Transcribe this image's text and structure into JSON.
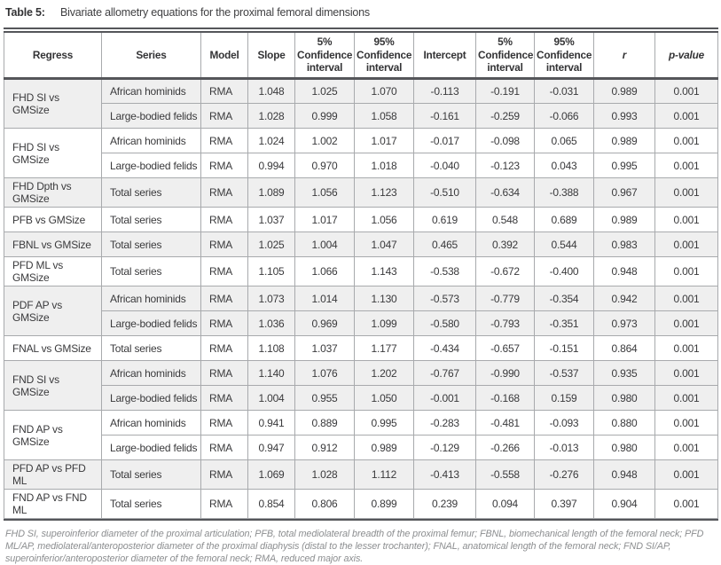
{
  "title": {
    "label": "Table 5:",
    "text": "Bivariate allometry equations for the proximal femoral dimensions"
  },
  "table": {
    "headers": [
      "Regress",
      "Series",
      "Model",
      "Slope",
      "5% Confidence interval",
      "95% Confidence interval",
      "Intercept",
      "5% Confidence interval",
      "95% Confidence interval",
      "r",
      "p-value"
    ],
    "groups": [
      {
        "regress": "FHD SI vs GMSize",
        "shaded": true,
        "rows": [
          {
            "series": "African hominids",
            "model": "RMA",
            "values": [
              "1.048",
              "1.025",
              "1.070",
              "-0.113",
              "-0.191",
              "-0.031",
              "0.989",
              "0.001"
            ]
          },
          {
            "series": "Large-bodied felids",
            "model": "RMA",
            "values": [
              "1.028",
              "0.999",
              "1.058",
              "-0.161",
              "-0.259",
              "-0.066",
              "0.993",
              "0.001"
            ]
          }
        ]
      },
      {
        "regress": "FHD SI vs GMSize",
        "shaded": false,
        "rows": [
          {
            "series": "African hominids",
            "model": "RMA",
            "values": [
              "1.024",
              "1.002",
              "1.017",
              "-0.017",
              "-0.098",
              "0.065",
              "0.989",
              "0.001"
            ]
          },
          {
            "series": "Large-bodied felids",
            "model": "RMA",
            "values": [
              "0.994",
              "0.970",
              "1.018",
              "-0.040",
              "-0.123",
              "0.043",
              "0.995",
              "0.001"
            ]
          }
        ]
      },
      {
        "regress": "FHD Dpth vs GMSize",
        "shaded": true,
        "rows": [
          {
            "series": "Total series",
            "model": "RMA",
            "values": [
              "1.089",
              "1.056",
              "1.123",
              "-0.510",
              "-0.634",
              "-0.388",
              "0.967",
              "0.001"
            ]
          }
        ]
      },
      {
        "regress": "PFB vs GMSize",
        "shaded": false,
        "rows": [
          {
            "series": "Total series",
            "model": "RMA",
            "values": [
              "1.037",
              "1.017",
              "1.056",
              "0.619",
              "0.548",
              "0.689",
              "0.989",
              "0.001"
            ]
          }
        ]
      },
      {
        "regress": "FBNL vs GMSize",
        "shaded": true,
        "rows": [
          {
            "series": "Total series",
            "model": "RMA",
            "values": [
              "1.025",
              "1.004",
              "1.047",
              "0.465",
              "0.392",
              "0.544",
              "0.983",
              "0.001"
            ]
          }
        ]
      },
      {
        "regress": "PFD ML vs GMSize",
        "shaded": false,
        "rows": [
          {
            "series": "Total series",
            "model": "RMA",
            "values": [
              "1.105",
              "1.066",
              "1.143",
              "-0.538",
              "-0.672",
              "-0.400",
              "0.948",
              "0.001"
            ]
          }
        ]
      },
      {
        "regress": "PDF AP vs GMSize",
        "shaded": true,
        "rows": [
          {
            "series": "African hominids",
            "model": "RMA",
            "values": [
              "1.073",
              "1.014",
              "1.130",
              "-0.573",
              "-0.779",
              "-0.354",
              "0.942",
              "0.001"
            ]
          },
          {
            "series": "Large-bodied felids",
            "model": "RMA",
            "values": [
              "1.036",
              "0.969",
              "1.099",
              "-0.580",
              "-0.793",
              "-0.351",
              "0.973",
              "0.001"
            ]
          }
        ]
      },
      {
        "regress": "FNAL vs GMSize",
        "shaded": false,
        "rows": [
          {
            "series": "Total series",
            "model": "RMA",
            "values": [
              "1.108",
              "1.037",
              "1.177",
              "-0.434",
              "-0.657",
              "-0.151",
              "0.864",
              "0.001"
            ]
          }
        ]
      },
      {
        "regress": "FND SI vs GMSize",
        "shaded": true,
        "rows": [
          {
            "series": "African hominids",
            "model": "RMA",
            "values": [
              "1.140",
              "1.076",
              "1.202",
              "-0.767",
              "-0.990",
              "-0.537",
              "0.935",
              "0.001"
            ]
          },
          {
            "series": "Large-bodied felids",
            "model": "RMA",
            "values": [
              "1.004",
              "0.955",
              "1.050",
              "-0.001",
              "-0.168",
              "0.159",
              "0.980",
              "0.001"
            ]
          }
        ]
      },
      {
        "regress": "FND AP vs GMSize",
        "shaded": false,
        "rows": [
          {
            "series": "African hominids",
            "model": "RMA",
            "values": [
              "0.941",
              "0.889",
              "0.995",
              "-0.283",
              "-0.481",
              "-0.093",
              "0.880",
              "0.001"
            ]
          },
          {
            "series": "Large-bodied felids",
            "model": "RMA",
            "values": [
              "0.947",
              "0.912",
              "0.989",
              "-0.129",
              "-0.266",
              "-0.013",
              "0.980",
              "0.001"
            ]
          }
        ]
      },
      {
        "regress": "PFD AP vs PFD ML",
        "shaded": true,
        "rows": [
          {
            "series": "Total series",
            "model": "RMA",
            "values": [
              "1.069",
              "1.028",
              "1.112",
              "-0.413",
              "-0.558",
              "-0.276",
              "0.948",
              "0.001"
            ]
          }
        ]
      },
      {
        "regress": "FND AP vs FND ML",
        "shaded": false,
        "rows": [
          {
            "series": "Total series",
            "model": "RMA",
            "values": [
              "0.854",
              "0.806",
              "0.899",
              "0.239",
              "0.094",
              "0.397",
              "0.904",
              "0.001"
            ]
          }
        ]
      }
    ]
  },
  "footnote": "FHD SI, superoinferior diameter of the proximal articulation; PFB, total mediolateral breadth of the proximal femur; FBNL, biomechanical length of the femoral neck; PFD ML/AP, mediolateral/anteroposterior diameter of the proximal diaphysis (distal to the lesser trochanter); FNAL, anatomical length of the femoral neck; FND SI/AP, superoinferior/anteroposterior diameter of the femoral neck; RMA, reduced major axis.",
  "colors": {
    "row_shade": "#efefef",
    "rule_dark": "#55565a",
    "rule_light": "#a8aaad",
    "text": "#3a3a3c",
    "footnote_text": "#8c8e90"
  }
}
